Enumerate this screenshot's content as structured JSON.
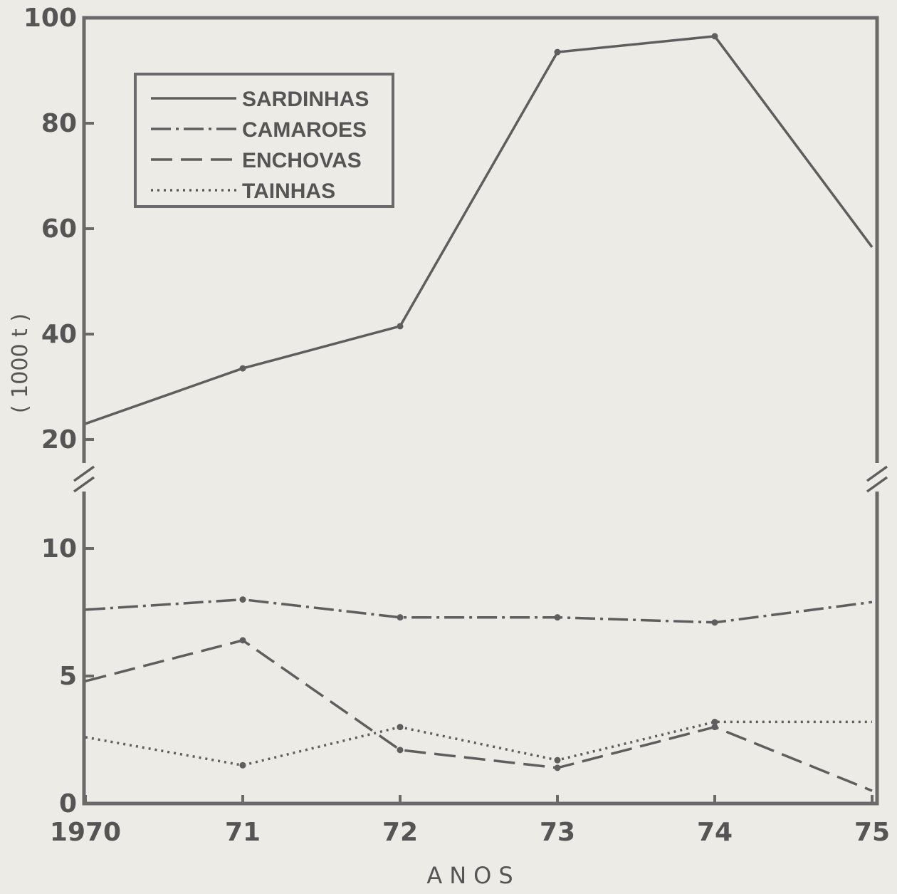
{
  "chart_data": {
    "type": "line",
    "xlabel": "ANOS",
    "ylabel": "( 1000 t )",
    "x": [
      "1970",
      "71",
      "72",
      "73",
      "74",
      "75"
    ],
    "y_axis": {
      "scale": "broken",
      "lower_segment": {
        "range": [
          0,
          10
        ],
        "ticks": [
          "0",
          "5",
          "10"
        ]
      },
      "upper_segment": {
        "range": [
          20,
          100
        ],
        "ticks": [
          "20",
          "40",
          "60",
          "80",
          "100"
        ]
      }
    },
    "series": [
      {
        "name": "SARDINHAS",
        "style": "solid",
        "values": [
          23,
          33.5,
          41.5,
          93.5,
          96.5,
          56.5
        ]
      },
      {
        "name": "CAMAROES",
        "style": "dash-dot",
        "values": [
          7.6,
          8.0,
          7.3,
          7.3,
          7.1,
          7.9
        ]
      },
      {
        "name": "ENCHOVAS",
        "style": "long-dash",
        "values": [
          4.8,
          6.4,
          2.1,
          1.4,
          3.0,
          0.5
        ]
      },
      {
        "name": "TAINHAS",
        "style": "dotted",
        "values": [
          2.6,
          1.5,
          3.0,
          1.7,
          3.2,
          3.2
        ]
      }
    ],
    "legend": {
      "position": "top-left",
      "entries": [
        "SARDINHAS",
        "CAMAROES",
        "ENCHOVAS",
        "TAINHAS"
      ]
    },
    "grid": false,
    "color": "#5e5e5e"
  }
}
